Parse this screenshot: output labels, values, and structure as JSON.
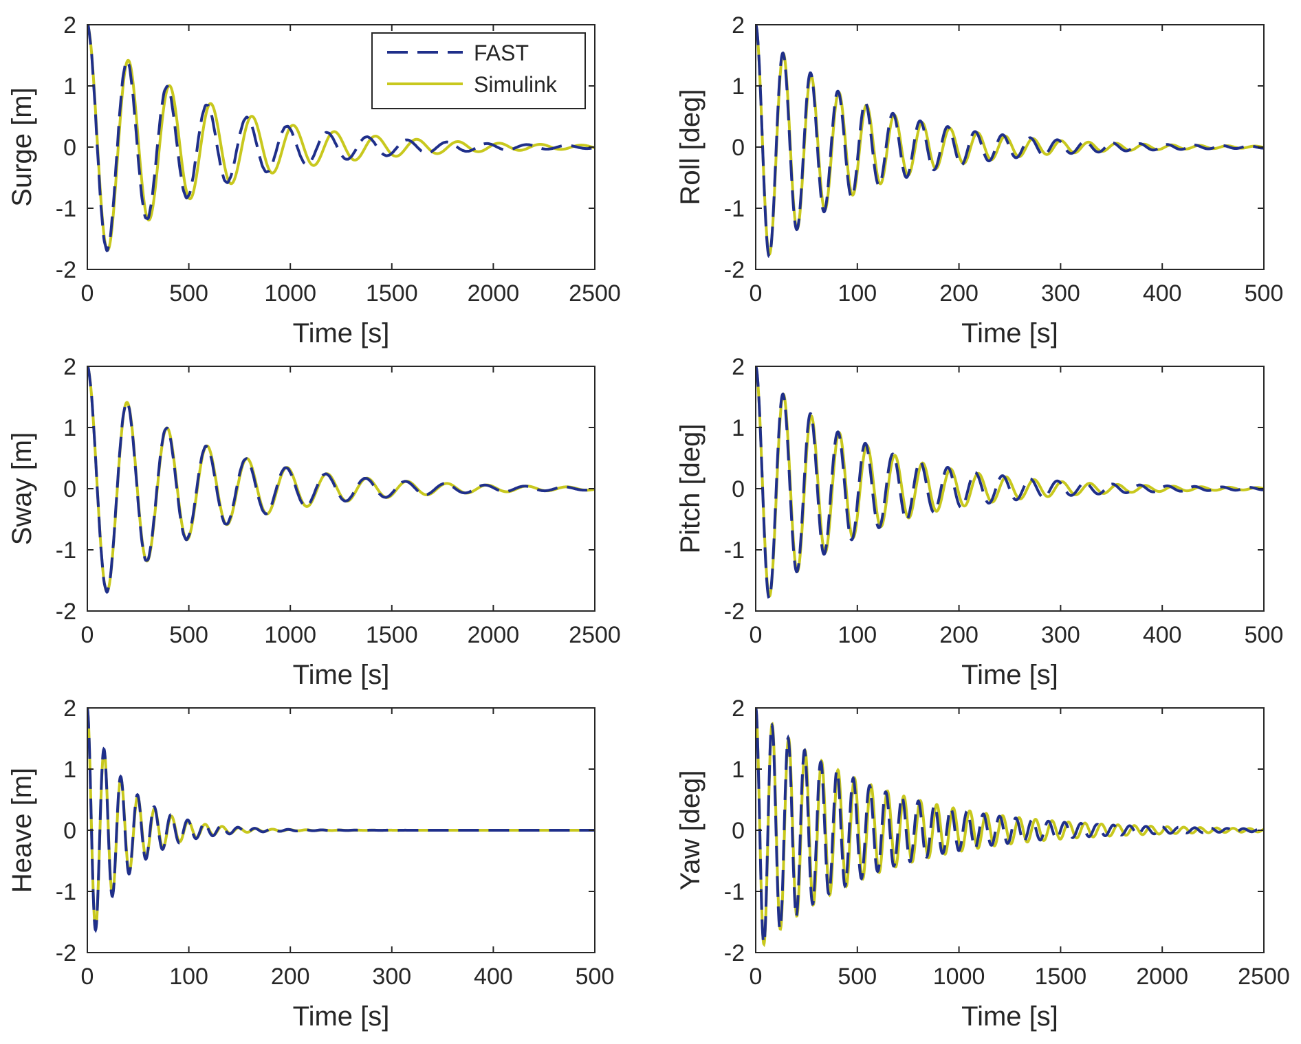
{
  "figure": {
    "legend": {
      "entries": [
        {
          "label": "FAST",
          "style": "dashed",
          "color": "#1f2f8a"
        },
        {
          "label": "Simulink",
          "style": "solid",
          "color": "#c8c81e"
        }
      ],
      "location": "top-right of first panel"
    }
  },
  "chart_data": [
    {
      "type": "line",
      "panel": "surge",
      "xlabel": "Time [s]",
      "ylabel": "Surge [m]",
      "xlim": [
        0,
        2500
      ],
      "ylim": [
        -2,
        2
      ],
      "xticks": [
        0,
        500,
        1000,
        1500,
        2000,
        2500
      ],
      "yticks": [
        -2,
        -1,
        0,
        1,
        2
      ],
      "series": [
        {
          "name": "FAST",
          "initial": 2.0,
          "period": 197,
          "decay": 0.0018,
          "phase": 0,
          "noise": 0.02
        },
        {
          "name": "Simulink",
          "initial": 2.0,
          "period": 203,
          "decay": 0.0017,
          "phase": 0,
          "noise": 0.0
        }
      ]
    },
    {
      "type": "line",
      "panel": "roll",
      "xlabel": "Time [s]",
      "ylabel": "Roll [deg]",
      "xlim": [
        0,
        500
      ],
      "ylim": [
        -2,
        2
      ],
      "xticks": [
        0,
        100,
        200,
        300,
        400,
        500
      ],
      "yticks": [
        -2,
        -1,
        0,
        1,
        2
      ],
      "series": [
        {
          "name": "FAST",
          "initial": 2.0,
          "period": 27,
          "decay": 0.0095,
          "phase": 0,
          "noise": 0.03
        },
        {
          "name": "Simulink",
          "initial": 2.0,
          "period": 27.3,
          "decay": 0.0098,
          "phase": 0,
          "noise": 0.0
        }
      ]
    },
    {
      "type": "line",
      "panel": "sway",
      "xlabel": "Time [s]",
      "ylabel": "Sway [m]",
      "xlim": [
        0,
        2500
      ],
      "ylim": [
        -2,
        2
      ],
      "xticks": [
        0,
        500,
        1000,
        1500,
        2000,
        2500
      ],
      "yticks": [
        -2,
        -1,
        0,
        1,
        2
      ],
      "series": [
        {
          "name": "FAST",
          "initial": 2.0,
          "period": 196,
          "decay": 0.0018,
          "phase": 0,
          "noise": 0.015
        },
        {
          "name": "Simulink",
          "initial": 2.0,
          "period": 197,
          "decay": 0.00178,
          "phase": 0,
          "noise": 0.0
        }
      ]
    },
    {
      "type": "line",
      "panel": "pitch",
      "xlabel": "Time [s]",
      "ylabel": "Pitch [deg]",
      "xlim": [
        0,
        500
      ],
      "ylim": [
        -2,
        2
      ],
      "xticks": [
        0,
        100,
        200,
        300,
        400,
        500
      ],
      "yticks": [
        -2,
        -1,
        0,
        1,
        2
      ],
      "series": [
        {
          "name": "FAST",
          "initial": 2.0,
          "period": 27,
          "decay": 0.0093,
          "phase": 0,
          "noise": 0.03
        },
        {
          "name": "Simulink",
          "initial": 2.0,
          "period": 27.4,
          "decay": 0.0095,
          "phase": 0,
          "noise": 0.0
        }
      ]
    },
    {
      "type": "line",
      "panel": "heave",
      "xlabel": "Time [s]",
      "ylabel": "Heave [m]",
      "xlim": [
        0,
        500
      ],
      "ylim": [
        -2,
        2
      ],
      "xticks": [
        0,
        100,
        200,
        300,
        400,
        500
      ],
      "yticks": [
        -2,
        -1,
        0,
        1,
        2
      ],
      "series": [
        {
          "name": "FAST",
          "initial": 2.0,
          "period": 16.5,
          "decay": 0.025,
          "phase": 0,
          "noise": 0.0
        },
        {
          "name": "Simulink",
          "initial": 2.0,
          "period": 16.6,
          "decay": 0.026,
          "phase": 0,
          "noise": 0.0
        }
      ]
    },
    {
      "type": "line",
      "panel": "yaw",
      "xlabel": "Time [s]",
      "ylabel": "Yaw [deg]",
      "xlim": [
        0,
        2500
      ],
      "ylim": [
        -2,
        2
      ],
      "xticks": [
        0,
        500,
        1000,
        1500,
        2000,
        2500
      ],
      "yticks": [
        -2,
        -1,
        0,
        1,
        2
      ],
      "series": [
        {
          "name": "FAST",
          "initial": 2.0,
          "period": 80,
          "decay": 0.0018,
          "phase": 0,
          "noise": 0.02
        },
        {
          "name": "Simulink",
          "initial": 2.0,
          "period": 81,
          "decay": 0.00175,
          "phase": 0,
          "noise": 0.0
        }
      ]
    }
  ]
}
